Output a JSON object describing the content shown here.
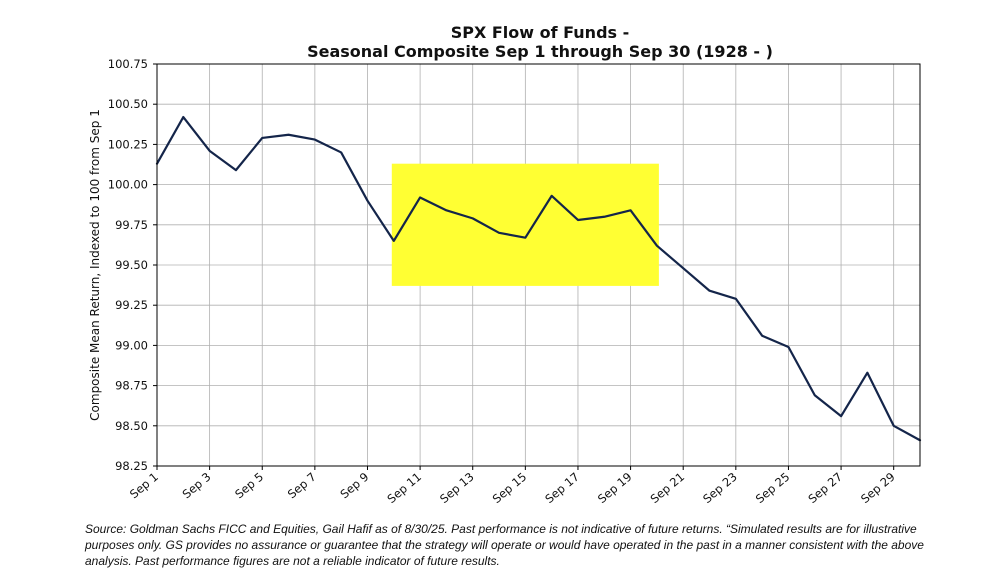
{
  "chart_data": {
    "type": "line",
    "title_lines": [
      "SPX Flow of Funds -",
      "Seasonal Composite Sep 1 through Sep 30 (1928 - )"
    ],
    "xlabel": "",
    "ylabel": "Composite Mean Return, Indexed to 100 from Sep 1",
    "x": [
      "Sep 1",
      "Sep 2",
      "Sep 3",
      "Sep 4",
      "Sep 5",
      "Sep 6",
      "Sep 7",
      "Sep 8",
      "Sep 9",
      "Sep 10",
      "Sep 11",
      "Sep 12",
      "Sep 13",
      "Sep 14",
      "Sep 15",
      "Sep 16",
      "Sep 17",
      "Sep 18",
      "Sep 19",
      "Sep 20",
      "Sep 21",
      "Sep 22",
      "Sep 23",
      "Sep 24",
      "Sep 25",
      "Sep 26",
      "Sep 27",
      "Sep 28",
      "Sep 29",
      "Sep 30"
    ],
    "series": [
      {
        "values": [
          100.13,
          100.42,
          100.21,
          100.09,
          100.29,
          100.31,
          100.28,
          100.2,
          99.9,
          99.65,
          99.92,
          99.84,
          99.79,
          99.7,
          99.67,
          99.93,
          99.78,
          99.8,
          99.84,
          99.62,
          99.48,
          99.34,
          99.29,
          99.06,
          98.99,
          98.69,
          98.56,
          98.83,
          98.5,
          98.41
        ],
        "color": "#14254a"
      }
    ],
    "x_tick_labels": [
      "Sep 1",
      "Sep 3",
      "Sep 5",
      "Sep 7",
      "Sep 9",
      "Sep 11",
      "Sep 13",
      "Sep 15",
      "Sep 17",
      "Sep 19",
      "Sep 21",
      "Sep 23",
      "Sep 25",
      "Sep 27",
      "Sep 29"
    ],
    "y_tick_values": [
      98.25,
      98.5,
      98.75,
      99.0,
      99.25,
      99.5,
      99.75,
      100.0,
      100.25,
      100.5,
      100.75
    ],
    "y_tick_labels": [
      "98.25",
      "98.50",
      "98.75",
      "99.00",
      "99.25",
      "99.50",
      "99.75",
      "100.00",
      "100.25",
      "100.50",
      "100.75"
    ],
    "ylim": [
      98.25,
      100.75
    ],
    "xlim": [
      "Sep 1",
      "Sep 30"
    ],
    "grid": true,
    "highlight_region": {
      "x_start": "Sep 10",
      "x_end": "Sep 20",
      "y_range": [
        99.37,
        100.13
      ],
      "color": "#ffff33"
    }
  },
  "source_note": "Source: Goldman Sachs FICC and Equities, Gail Hafif as of 8/30/25. Past performance is not indicative of future returns. “Simulated results are for illustrative purposes only. GS provides no assurance or guarantee that the strategy will operate or would have operated in the past in a manner consistent with the above analysis. Past performance figures are not a reliable indicator of future results."
}
